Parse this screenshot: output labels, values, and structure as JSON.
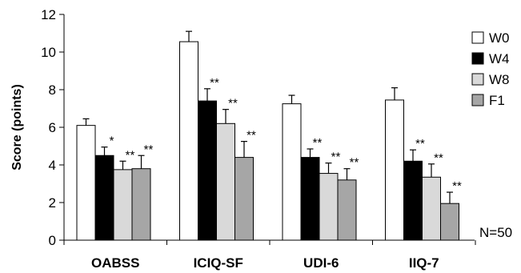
{
  "chart_data": {
    "type": "bar",
    "title": "",
    "xlabel": "",
    "ylabel": "Score (points)",
    "ylim": [
      0,
      12
    ],
    "yticks": [
      0,
      2,
      4,
      6,
      8,
      10,
      12
    ],
    "grid": false,
    "legend_position": "right",
    "categories": [
      "OABSS",
      "ICIQ-SF",
      "UDI-6",
      "IIQ-7"
    ],
    "series": [
      {
        "name": "W0",
        "color": "#ffffff",
        "values": [
          6.1,
          10.55,
          7.25,
          7.45
        ],
        "errors": [
          0.35,
          0.55,
          0.45,
          0.65
        ],
        "sig": [
          "",
          "",
          "",
          ""
        ]
      },
      {
        "name": "W4",
        "color": "#000000",
        "values": [
          4.5,
          7.4,
          4.4,
          4.2
        ],
        "errors": [
          0.45,
          0.65,
          0.45,
          0.6
        ],
        "sig": [
          "*",
          "**",
          "**",
          "**"
        ]
      },
      {
        "name": "W8",
        "color": "#d9d9d9",
        "values": [
          3.75,
          6.2,
          3.55,
          3.35
        ],
        "errors": [
          0.45,
          0.75,
          0.55,
          0.7
        ],
        "sig": [
          "**",
          "**",
          "**",
          "**"
        ]
      },
      {
        "name": "F1",
        "color": "#a6a6a6",
        "values": [
          3.8,
          4.4,
          3.2,
          1.95
        ],
        "errors": [
          0.7,
          0.85,
          0.6,
          0.6
        ],
        "sig": [
          "**",
          "**",
          "**",
          "**"
        ]
      }
    ],
    "annotation": "N=50"
  }
}
